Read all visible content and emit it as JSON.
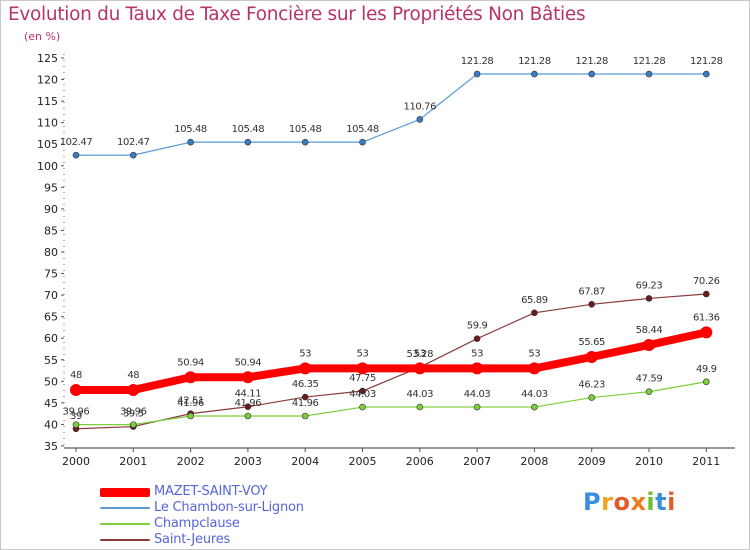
{
  "title": "Evolution du Taux de Taxe Foncière sur les Propriétés Non Bâties",
  "unit_label": "(en %)",
  "logo": {
    "text": "Proxiti",
    "letter_colors": [
      "#3b8ede",
      "#f4a21e",
      "#e45c2c",
      "#ef7d1e",
      "#6cbf2b",
      "#3b8ede",
      "#e45c2c"
    ]
  },
  "chart_data": {
    "type": "line",
    "title": "Evolution du Taux de Taxe Foncière sur les Propriétés Non Bâties",
    "ylabel": "(en %)",
    "xlabel": "",
    "x": [
      "2000",
      "2001",
      "2002",
      "2003",
      "2004",
      "2005",
      "2006",
      "2007",
      "2008",
      "2009",
      "2010",
      "2011"
    ],
    "ylim": [
      35,
      125
    ],
    "yticks": [
      35,
      40,
      45,
      50,
      55,
      60,
      65,
      70,
      75,
      80,
      85,
      90,
      95,
      100,
      105,
      110,
      115,
      120,
      125
    ],
    "grid": false,
    "legend_position": "bottom-left",
    "series": [
      {
        "name": "MAZET-SAINT-VOY",
        "color": "#ff0000",
        "values": [
          48,
          48,
          50.94,
          50.94,
          53,
          53,
          53,
          53,
          53,
          55.65,
          58.44,
          61.36
        ],
        "labels": [
          "48",
          "48",
          "50.94",
          "50.94",
          "53",
          "53",
          "53",
          "53",
          "53",
          "55.65",
          "58.44",
          "61.36"
        ]
      },
      {
        "name": "Le Chambon-sur-Lignon",
        "color": "#5a9bd5",
        "values": [
          102.47,
          102.47,
          105.48,
          105.48,
          105.48,
          105.48,
          110.76,
          121.28,
          121.28,
          121.28,
          121.28,
          121.28
        ],
        "labels": [
          "102.47",
          "102.47",
          "105.48",
          "105.48",
          "105.48",
          "105.48",
          "110.76",
          "121.28",
          "121.28",
          "121.28",
          "121.28",
          "121.28"
        ]
      },
      {
        "name": "Champclause",
        "color": "#7ccf3a",
        "values": [
          39.96,
          39.96,
          41.96,
          41.96,
          41.96,
          44.03,
          44.03,
          44.03,
          44.03,
          46.23,
          47.59,
          49.9
        ],
        "labels": [
          "39.96",
          "39.96",
          "41.96",
          "41.96",
          "41.96",
          "44.03",
          "44.03",
          "44.03",
          "44.03",
          "46.23",
          "47.59",
          "49.9"
        ]
      },
      {
        "name": "Saint-Jeures",
        "color": "#8b3a3a",
        "values": [
          39,
          39.5,
          42.51,
          44.11,
          46.35,
          47.75,
          53.28,
          59.9,
          65.89,
          67.87,
          69.23,
          70.26
        ],
        "labels": [
          "39",
          "39.5",
          "42.51",
          "44.11",
          "46.35",
          "47.75",
          "53.28",
          "59.9",
          "65.89",
          "67.87",
          "69.23",
          "70.26"
        ]
      }
    ]
  }
}
